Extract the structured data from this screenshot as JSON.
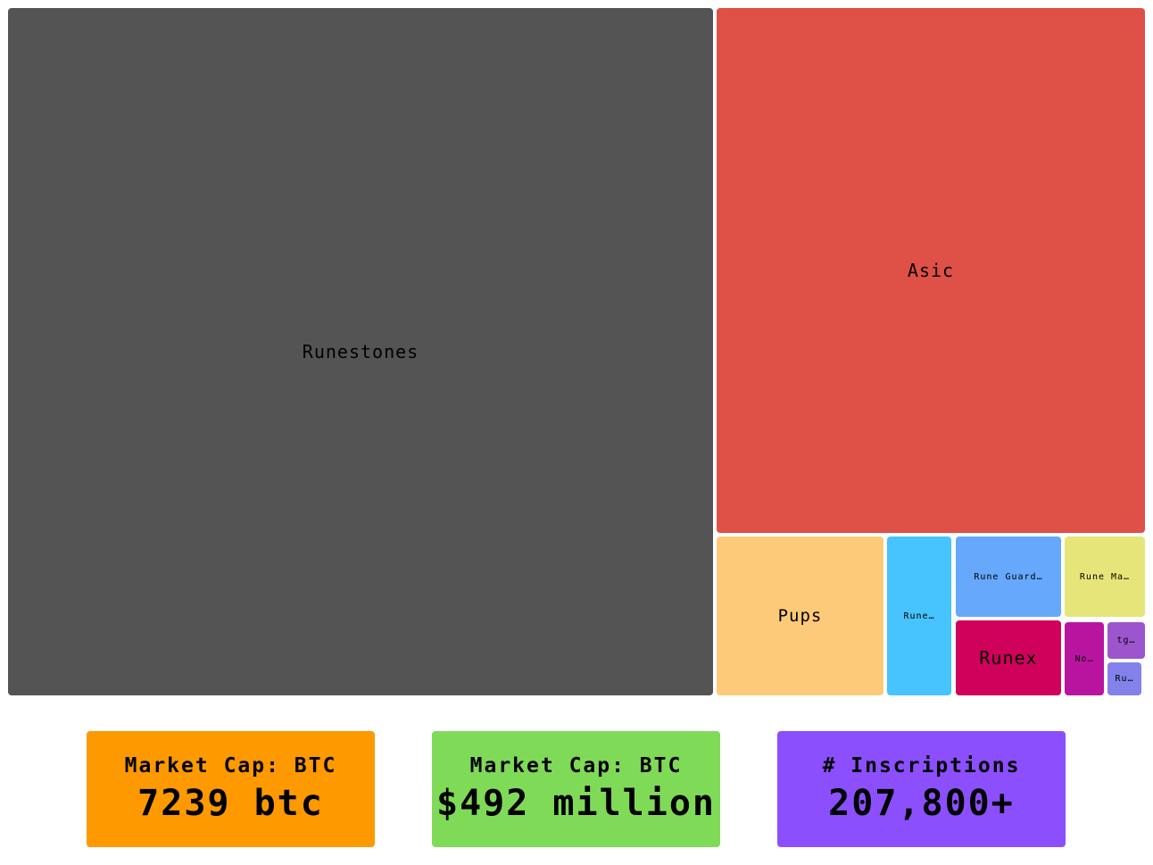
{
  "chart_data": {
    "type": "treemap",
    "items": [
      {
        "label": "Runestones",
        "share_pct": 62.6,
        "color": "#545454"
      },
      {
        "label": "Asic",
        "share_pct": 29.0,
        "color": "#df5047"
      },
      {
        "label": "Pups",
        "share_pct": 3.4,
        "color": "#fdca79"
      },
      {
        "label": "Rune…",
        "share_pct": 1.3,
        "color": "#47c3fd"
      },
      {
        "label": "Rune Guard…",
        "share_pct": 1.1,
        "color": "#66a8fb"
      },
      {
        "label": "Rune Ma…",
        "share_pct": 0.8,
        "color": "#e6e57a"
      },
      {
        "label": "Runex",
        "share_pct": 1.0,
        "color": "#d0015a"
      },
      {
        "label": "No…",
        "share_pct": 0.4,
        "color": "#b914a0"
      },
      {
        "label": "tg…",
        "share_pct": 0.2,
        "color": "#9c55cc"
      },
      {
        "label": "Ru…",
        "share_pct": 0.15,
        "color": "#8382ea"
      }
    ]
  },
  "stats": [
    {
      "label": "Market Cap: BTC",
      "value": "7239 btc",
      "color": "#fe9900"
    },
    {
      "label": "Market Cap: BTC",
      "value": "$492 million",
      "color": "#7fda58"
    },
    {
      "label": "# Inscriptions",
      "value": "207,800+",
      "color": "#8c4ffe"
    }
  ]
}
